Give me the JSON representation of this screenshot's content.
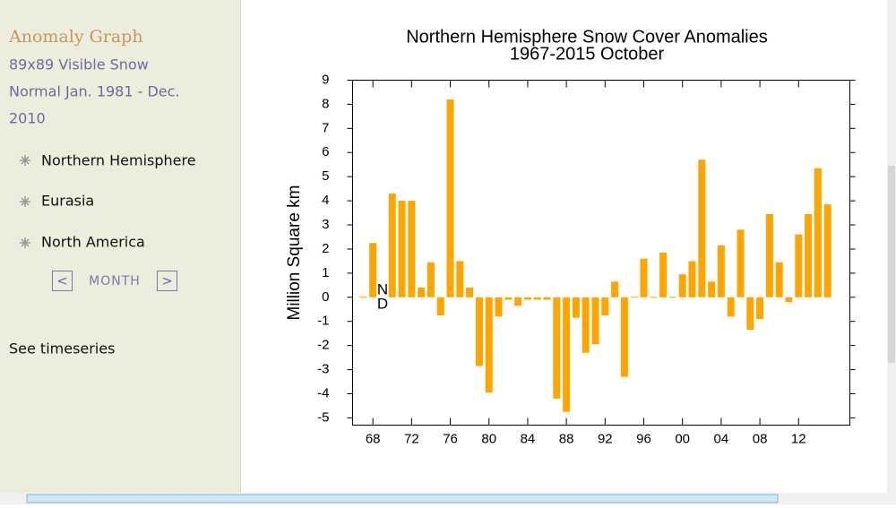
{
  "sidebar": {
    "title": "Anomaly Graph",
    "lines": [
      "89x89 Visible Snow",
      "Normal Jan. 1981 - Dec.",
      "2010"
    ],
    "menu": [
      "Northern Hemisphere",
      "Eurasia",
      "North America"
    ],
    "month": {
      "prev": "<",
      "label": "MONTH",
      "next": ">"
    },
    "link": "See timeseries"
  },
  "chart_data": {
    "type": "bar",
    "title": "Northern Hemisphere Snow Cover Anomalies",
    "subtitle": "1967-2015 October",
    "y_label": "Million Square km",
    "color": "#ffa500",
    "x": [
      1967,
      1968,
      1969,
      1970,
      1971,
      1972,
      1973,
      1974,
      1975,
      1976,
      1977,
      1978,
      1979,
      1980,
      1981,
      1982,
      1983,
      1984,
      1985,
      1986,
      1987,
      1988,
      1989,
      1990,
      1991,
      1992,
      1993,
      1994,
      1995,
      1996,
      1997,
      1998,
      1999,
      2000,
      2001,
      2002,
      2003,
      2004,
      2005,
      2006,
      2007,
      2008,
      2009,
      2010,
      2011,
      2012,
      2013,
      2014,
      2015
    ],
    "values": [
      0,
      2.25,
      null,
      4.3,
      4.0,
      4.0,
      0.4,
      1.45,
      -0.75,
      8.2,
      1.5,
      0.4,
      -2.85,
      -3.95,
      -0.8,
      -0.1,
      -0.35,
      -0.1,
      -0.1,
      -0.1,
      -4.2,
      -4.75,
      -0.85,
      -2.3,
      -1.95,
      -0.75,
      0.65,
      -3.3,
      0,
      1.6,
      0,
      1.85,
      0,
      0.95,
      1.5,
      5.7,
      0.65,
      2.15,
      -0.8,
      2.8,
      -1.35,
      -0.9,
      3.45,
      1.45,
      -0.2,
      2.6,
      3.45,
      5.35,
      3.85
    ],
    "annotations": [
      {
        "text": "N",
        "x": 1969
      },
      {
        "text": "D",
        "x": 1969
      }
    ],
    "xlim": [
      1965.9,
      2017.3
    ],
    "xticks": [
      {
        "value": 1968,
        "label": "68"
      },
      {
        "value": 1972,
        "label": "72"
      },
      {
        "value": 1976,
        "label": "76"
      },
      {
        "value": 1980,
        "label": "80"
      },
      {
        "value": 1984,
        "label": "84"
      },
      {
        "value": 1988,
        "label": "88"
      },
      {
        "value": 1992,
        "label": "92"
      },
      {
        "value": 1996,
        "label": "96"
      },
      {
        "value": 2000,
        "label": "00"
      },
      {
        "value": 2004,
        "label": "04"
      },
      {
        "value": 2008,
        "label": "08"
      },
      {
        "value": 2012,
        "label": "12"
      }
    ],
    "ylim": [
      -5.3,
      9
    ],
    "yticks": [
      -5,
      -4,
      -3,
      -2,
      -1,
      0,
      1,
      2,
      3,
      4,
      5,
      6,
      7,
      8,
      9
    ]
  }
}
